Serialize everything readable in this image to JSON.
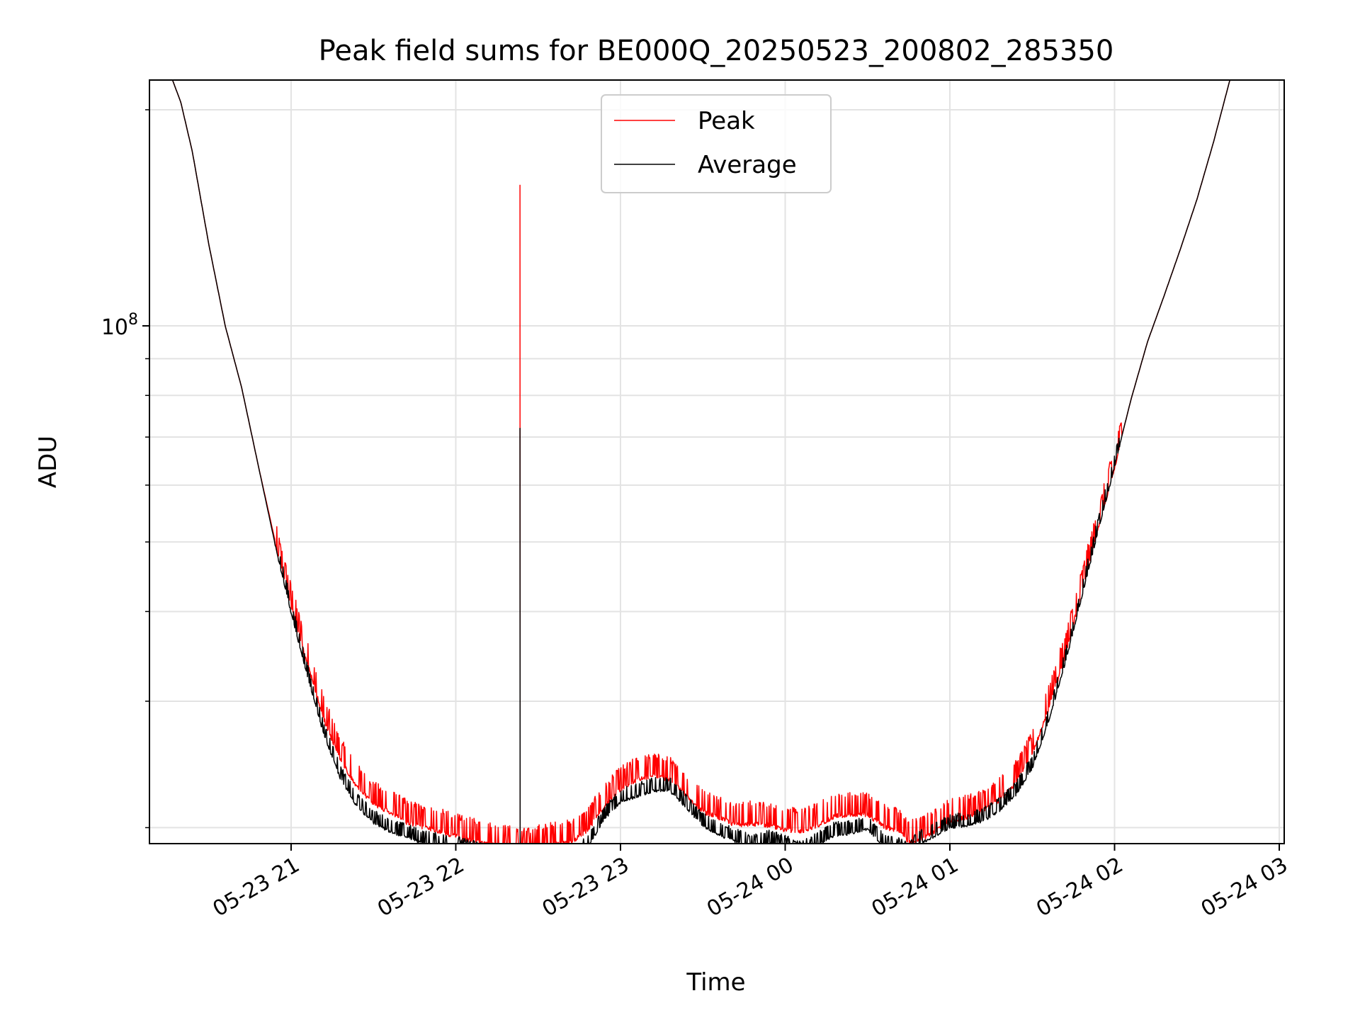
{
  "chart_data": {
    "type": "line",
    "title": "Peak field sums for BE000Q_20250523_200802_285350",
    "xlabel": "Time",
    "ylabel": "ADU",
    "yscale": "log",
    "ylim": [
      19000000,
      220000000
    ],
    "y_major_ticks": [
      {
        "value": 100000000,
        "base": "10",
        "exp": "8"
      }
    ],
    "y_minor_ticks": [
      20000000,
      30000000,
      40000000,
      50000000,
      60000000,
      70000000,
      80000000,
      90000000,
      200000000
    ],
    "x_ticks": [
      "05-23 21",
      "05-23 22",
      "05-23 23",
      "05-24 00",
      "05-24 01",
      "05-24 02",
      "05-24 03"
    ],
    "x_tick_hours": [
      21,
      22,
      23,
      24,
      25,
      26,
      27
    ],
    "xlim_hours": [
      20.14,
      27.03
    ],
    "grid": true,
    "legend": {
      "position": "top-center",
      "entries": [
        "Peak",
        "Average"
      ]
    },
    "colors": {
      "Peak": "#ff0000",
      "Average": "#000000"
    },
    "series": [
      {
        "name": "Average",
        "x_hours": [
          20.14,
          20.28,
          20.33,
          20.4,
          20.5,
          20.6,
          20.7,
          20.8,
          20.9,
          21.0,
          21.1,
          21.2,
          21.3,
          21.4,
          21.5,
          21.6,
          21.7,
          21.8,
          21.9,
          22.0,
          22.05,
          22.1,
          22.2,
          22.3,
          22.4,
          22.45,
          22.5,
          22.6,
          22.7,
          22.8,
          22.9,
          23.0,
          23.1,
          23.2,
          23.3,
          23.4,
          23.5,
          23.6,
          23.7,
          23.8,
          23.9,
          24.0,
          24.1,
          24.2,
          24.3,
          24.4,
          24.5,
          24.6,
          24.7,
          24.75,
          24.8,
          24.9,
          25.0,
          25.1,
          25.2,
          25.3,
          25.4,
          25.5,
          25.6,
          25.7,
          25.8,
          25.9,
          26.0,
          26.1,
          26.2,
          26.3,
          26.4,
          26.5,
          26.6,
          26.7,
          26.78,
          27.03
        ],
        "values": [
          220000000,
          220000000,
          205000000,
          175000000,
          130000000,
          100000000,
          82000000,
          64000000,
          50000000,
          40000000,
          32500000,
          27000000,
          23500000,
          21500000,
          20400000,
          19800000,
          19500000,
          19100000,
          18900000,
          18800000,
          18600000,
          18500000,
          18400000,
          18200000,
          18100000,
          18100000,
          18000000,
          17900000,
          18100000,
          18800000,
          20600000,
          21800000,
          22200000,
          22600000,
          22600000,
          21400000,
          20200000,
          19600000,
          19200000,
          18800000,
          19100000,
          18800000,
          18400000,
          19000000,
          19600000,
          19700000,
          20000000,
          18900000,
          18600000,
          18300000,
          19000000,
          19500000,
          20100000,
          20200000,
          20500000,
          21200000,
          22300000,
          24300000,
          28300000,
          34000000,
          42000000,
          52000000,
          64000000,
          79000000,
          95000000,
          110000000,
          128000000,
          150000000,
          180000000,
          220000000,
          220000000,
          220000000
        ]
      },
      {
        "name": "Peak",
        "x_hours": [
          20.14,
          20.28,
          20.33,
          20.4,
          20.5,
          20.6,
          20.7,
          20.8,
          20.9,
          21.0,
          21.1,
          21.2,
          21.3,
          21.4,
          21.5,
          21.6,
          21.7,
          21.8,
          21.9,
          22.0,
          22.05,
          22.1,
          22.2,
          22.3,
          22.4,
          22.45,
          22.5,
          22.6,
          22.7,
          22.8,
          22.9,
          23.0,
          23.1,
          23.2,
          23.3,
          23.4,
          23.5,
          23.6,
          23.7,
          23.8,
          23.9,
          24.0,
          24.1,
          24.2,
          24.3,
          24.4,
          24.5,
          24.6,
          24.7,
          24.75,
          24.8,
          24.9,
          25.0,
          25.1,
          25.2,
          25.3,
          25.4,
          25.5,
          25.6,
          25.7,
          25.8,
          25.9,
          26.0,
          26.1,
          26.2,
          26.3,
          26.4,
          26.5,
          26.6,
          26.7,
          26.78,
          27.03
        ],
        "values": [
          220000000,
          220000000,
          205000000,
          175000000,
          130000000,
          100000000,
          82000000,
          64000000,
          50500000,
          41000000,
          34000000,
          28500000,
          25000000,
          23000000,
          21700000,
          21200000,
          20500000,
          20200000,
          19900000,
          19600000,
          19400000,
          19300000,
          19100000,
          18900000,
          18700000,
          18700000,
          18900000,
          19100000,
          19200000,
          20000000,
          21500000,
          22800000,
          23500000,
          23800000,
          23500000,
          22300000,
          21200000,
          20800000,
          20300000,
          20400000,
          20300000,
          20000000,
          19900000,
          20300000,
          20900000,
          21000000,
          21000000,
          20200000,
          19900000,
          19200000,
          19300000,
          19800000,
          20600000,
          20800000,
          21200000,
          22000000,
          23200000,
          25500000,
          29500000,
          35000000,
          43000000,
          52500000,
          64000000,
          79000000,
          95000000,
          110000000,
          128000000,
          150000000,
          180000000,
          220000000,
          220000000,
          220000000
        ]
      }
    ],
    "spike": {
      "x_hour": 22.39,
      "peak": 157000000,
      "average": 72000000
    }
  }
}
